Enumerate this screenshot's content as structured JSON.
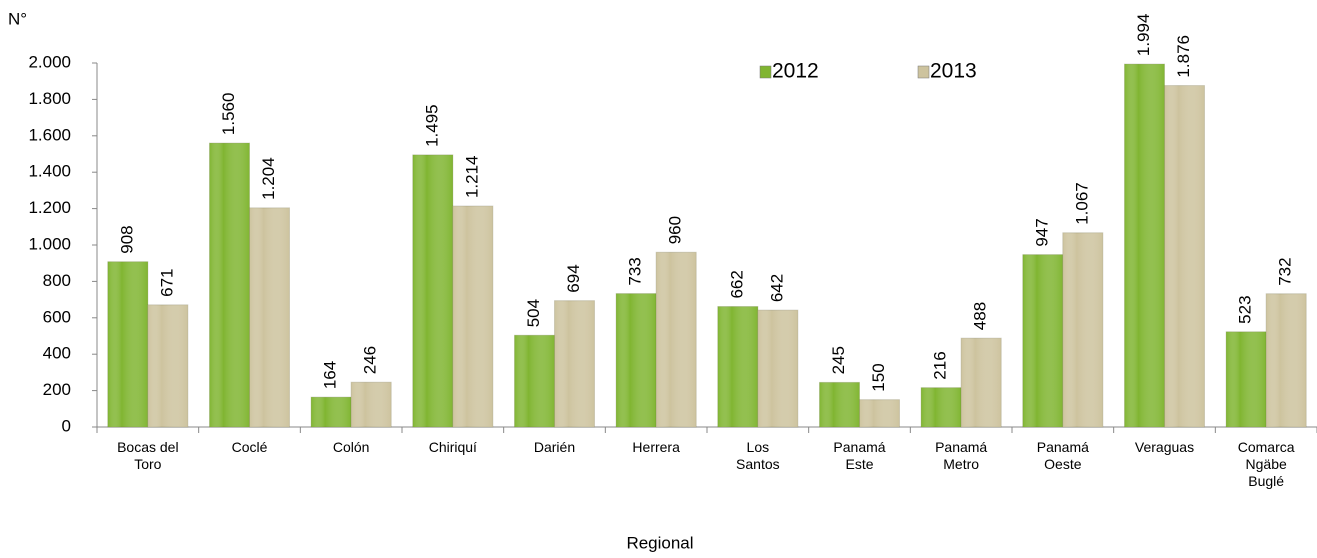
{
  "chart_data": {
    "type": "bar",
    "y_label": "N°",
    "x_label": "Regional",
    "categories": [
      "Bocas del Toro",
      "Coclé",
      "Colón",
      "Chiriquí",
      "Darién",
      "Herrera",
      "Los Santos",
      "Panamá Este",
      "Panamá Metro",
      "Panamá Oeste",
      "Veraguas",
      "Comarca Ngäbe Buglé"
    ],
    "series": [
      {
        "name": "2012",
        "color": "#80b531",
        "values": [
          908,
          1560,
          164,
          1495,
          504,
          733,
          662,
          245,
          216,
          947,
          1994,
          523
        ],
        "value_labels": [
          "908",
          "1.560",
          "164",
          "1.495",
          "504",
          "733",
          "662",
          "245",
          "216",
          "947",
          "1.994",
          "523"
        ]
      },
      {
        "name": "2013",
        "color": "#cdc39e",
        "values": [
          671,
          1204,
          246,
          1214,
          694,
          960,
          642,
          150,
          488,
          1067,
          1876,
          732
        ],
        "value_labels": [
          "671",
          "1.204",
          "246",
          "1.214",
          "694",
          "960",
          "642",
          "150",
          "488",
          "1.067",
          "1.876",
          "732"
        ]
      }
    ],
    "ylim": [
      0,
      2000
    ],
    "yticks": [
      0,
      200,
      400,
      600,
      800,
      {
        "value": 1000,
        "label": "1.000"
      },
      {
        "value": 1200,
        "label": "1.200"
      },
      {
        "value": 1400,
        "label": "1.400"
      },
      {
        "value": 1600,
        "label": "1.600"
      },
      {
        "value": 1800,
        "label": "1.800"
      },
      {
        "value": 2000,
        "label": "2.000"
      }
    ],
    "grid": false
  }
}
